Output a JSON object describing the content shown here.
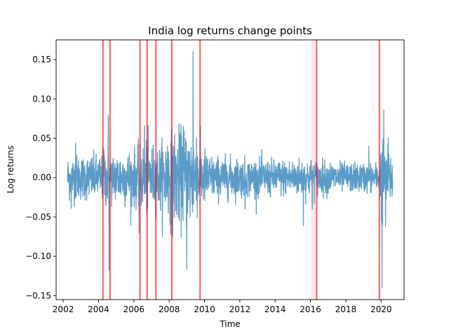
{
  "chart_data": {
    "type": "line",
    "title": "India log returns change points",
    "xlabel": "Time",
    "ylabel": "Log returns",
    "xlim": [
      2001.6,
      2021.3
    ],
    "ylim": [
      -0.155,
      0.175
    ],
    "x_ticks": [
      2002,
      2004,
      2006,
      2008,
      2010,
      2012,
      2014,
      2016,
      2018,
      2020
    ],
    "x_tick_labels": [
      "2002",
      "2004",
      "2006",
      "2008",
      "2010",
      "2012",
      "2014",
      "2016",
      "2018",
      "2020"
    ],
    "y_ticks": [
      -0.15,
      -0.1,
      -0.05,
      0.0,
      0.05,
      0.1,
      0.15
    ],
    "y_tick_labels": [
      "−0.15",
      "−0.10",
      "−0.05",
      "0.00",
      "0.05",
      "0.10",
      "0.15"
    ],
    "grid": false,
    "legend": "none",
    "series": [
      {
        "color": "#5b9bc8",
        "x_start": 2002.25,
        "x_end": 2020.65,
        "baseline_volatility": [
          [
            2002.25,
            0.014
          ],
          [
            2004.2,
            0.014
          ],
          [
            2004.3,
            0.02
          ],
          [
            2004.65,
            0.016
          ],
          [
            2006.3,
            0.018
          ],
          [
            2006.8,
            0.024
          ],
          [
            2007.25,
            0.018
          ],
          [
            2008.15,
            0.028
          ],
          [
            2009.3,
            0.032
          ],
          [
            2009.75,
            0.02
          ],
          [
            2010.5,
            0.013
          ],
          [
            2012.0,
            0.012
          ],
          [
            2014.0,
            0.011
          ],
          [
            2016.0,
            0.012
          ],
          [
            2016.35,
            0.011
          ],
          [
            2018.0,
            0.009
          ],
          [
            2019.9,
            0.009
          ],
          [
            2020.05,
            0.03
          ],
          [
            2020.3,
            0.02
          ],
          [
            2020.65,
            0.014
          ]
        ],
        "extremes": [
          [
            2002.45,
            -0.039
          ],
          [
            2002.7,
            0.044
          ],
          [
            2004.3,
            0.035
          ],
          [
            2004.55,
            0.079
          ],
          [
            2004.6,
            -0.118
          ],
          [
            2006.3,
            -0.07
          ],
          [
            2006.6,
            0.066
          ],
          [
            2007.9,
            0.04
          ],
          [
            2008.2,
            -0.075
          ],
          [
            2008.8,
            0.065
          ],
          [
            2009.0,
            -0.116
          ],
          [
            2009.35,
            0.16
          ],
          [
            2009.55,
            0.05
          ],
          [
            2012.3,
            -0.04
          ],
          [
            2015.6,
            -0.061
          ],
          [
            2016.1,
            -0.04
          ],
          [
            2019.3,
            0.04
          ],
          [
            2020.05,
            -0.14
          ],
          [
            2020.15,
            0.086
          ],
          [
            2020.25,
            -0.062
          ],
          [
            2020.4,
            0.05
          ]
        ]
      }
    ],
    "change_points": [
      2004.25,
      2004.65,
      2006.35,
      2006.75,
      2007.25,
      2008.15,
      2009.75,
      2016.35,
      2019.9
    ],
    "change_point_color": "#ff0000",
    "faint_regions": [
      [
        2016.05,
        2016.3
      ]
    ]
  }
}
